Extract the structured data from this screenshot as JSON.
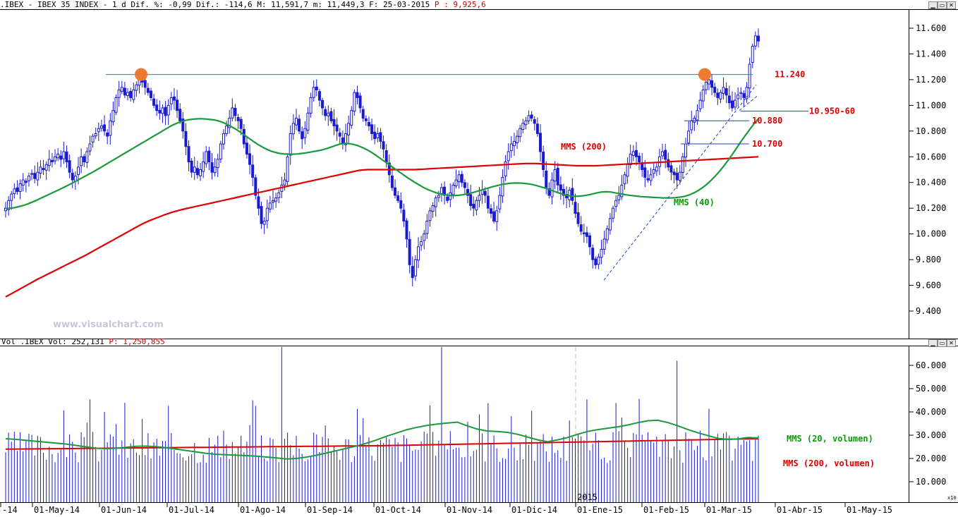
{
  "price_header": {
    "prefix": ".IBEX - IBEX 35 INDEX -  1 d Dif. %: -0,99 Dif.: -114,6 M: 11,591,7 m: 11,449,3 F: 25-03-2015",
    "p_label": "P : 9,925,6"
  },
  "volume_header": {
    "prefix": "Vol_.IBEX Vol: 252,131",
    "p_label": "P: 1,250,855"
  },
  "watermark": "www.visualchart.com",
  "window_buttons": [
    "▁",
    "▭",
    "✕"
  ],
  "scale_note": "x10",
  "colors": {
    "candle": "#1a1ad0",
    "mms40": "#1a9a3c",
    "mms200": "#e00000",
    "resistance": "#2a8a8a",
    "level_line": "#2040c0",
    "marker": "#f07830",
    "label_red": "#e00000",
    "label_green": "#0a9a0a"
  },
  "chart_data": [
    {
      "type": "candlestick",
      "title": "IBEX 35 INDEX",
      "ylim": [
        9250,
        11700
      ],
      "yticks": [
        "9.400",
        "9.600",
        "9.800",
        "10.000",
        "10.200",
        "10.400",
        "10.600",
        "10.800",
        "11.000",
        "11.200",
        "11.400",
        "11.600"
      ],
      "xticks": [
        "-14",
        "01-May-14",
        "01-Jun-14",
        "01-Jul-14",
        "01-Ago-14",
        "01-Sep-14",
        "01-Oct-14",
        "01-Nov-14",
        "01-Dic-14",
        "01-Ene-15",
        "01-Feb-15",
        "01-Mar-15",
        "01-Abr-15",
        "01-May-15"
      ],
      "close": [
        10200,
        10260,
        10310,
        10350,
        10330,
        10390,
        10420,
        10400,
        10450,
        10470,
        10430,
        10480,
        10520,
        10500,
        10540,
        10580,
        10560,
        10600,
        10620,
        10580,
        10640,
        10560,
        10480,
        10420,
        10450,
        10520,
        10600,
        10560,
        10640,
        10700,
        10760,
        10780,
        10820,
        10840,
        10800,
        10760,
        10880,
        10960,
        11060,
        11120,
        11140,
        11080,
        11100,
        11060,
        11120,
        11160,
        11200,
        11180,
        11140,
        11100,
        11060,
        11000,
        10960,
        10940,
        10980,
        10920,
        11000,
        11060,
        11040,
        10960,
        10880,
        10800,
        10680,
        10560,
        10480,
        10520,
        10460,
        10500,
        10560,
        10640,
        10560,
        10480,
        10520,
        10580,
        10700,
        10780,
        10840,
        10900,
        10980,
        10920,
        10880,
        10820,
        10700,
        10620,
        10540,
        10440,
        10300,
        10200,
        10080,
        10100,
        10200,
        10240,
        10260,
        10280,
        10320,
        10380,
        10420,
        10600,
        10780,
        10860,
        10900,
        10800,
        10740,
        10820,
        10940,
        11060,
        11140,
        11120,
        11040,
        10980,
        10920,
        10940,
        10880,
        10840,
        10800,
        10760,
        10700,
        10780,
        10860,
        10960,
        11100,
        11060,
        10980,
        10900,
        10880,
        10840,
        10780,
        10740,
        10780,
        10720,
        10660,
        10560,
        10460,
        10360,
        10300,
        10260,
        10200,
        10100,
        9960,
        9760,
        9660,
        9800,
        9900,
        9940,
        10000,
        10100,
        10180,
        10220,
        10280,
        10300,
        10360,
        10300,
        10260,
        10320,
        10380,
        10420,
        10460,
        10400,
        10360,
        10300,
        10220,
        10200,
        10260,
        10300,
        10340,
        10300,
        10200,
        10160,
        10100,
        10180,
        10300,
        10440,
        10560,
        10640,
        10700,
        10720,
        10760,
        10820,
        10860,
        10880,
        10920,
        10900,
        10860,
        10780,
        10640,
        10500,
        10360,
        10300,
        10420,
        10500,
        10380,
        10340,
        10300,
        10280,
        10340,
        10260,
        10160,
        10080,
        10020,
        10000,
        9980,
        9900,
        9800,
        9760,
        9820,
        9880,
        9960,
        10040,
        10120,
        10200,
        10260,
        10300,
        10380,
        10460,
        10540,
        10620,
        10640,
        10600,
        10560,
        10500,
        10440,
        10420,
        10460,
        10500,
        10520,
        10600,
        10640,
        10580,
        10520,
        10480,
        10460,
        10420,
        10480,
        10600,
        10700,
        10800,
        10880,
        10900,
        10960,
        11040,
        11120,
        11180,
        11200,
        11140,
        11100,
        11060,
        11100,
        11140,
        11080,
        11020,
        10980,
        11040,
        11080,
        11100,
        11060,
        11140,
        11320,
        11460,
        11540,
        11500
      ],
      "mms40": [
        10198,
        10200,
        10204,
        10212,
        10220,
        10232,
        10246,
        10260,
        10276,
        10292,
        10308,
        10324,
        10340,
        10356,
        10372,
        10390,
        10408,
        10426,
        10444,
        10462,
        10480,
        10500,
        10520,
        10540,
        10560,
        10580,
        10600,
        10620,
        10640,
        10660,
        10680,
        10700,
        10720,
        10740,
        10760,
        10780,
        10800,
        10820,
        10840,
        10856,
        10870,
        10880,
        10888,
        10892,
        10895,
        10896,
        10894,
        10890,
        10886,
        10878,
        10866,
        10850,
        10832,
        10812,
        10790,
        10766,
        10742,
        10718,
        10696,
        10676,
        10658,
        10644,
        10634,
        10626,
        10622,
        10620,
        10620,
        10622,
        10626,
        10630,
        10636,
        10642,
        10648,
        10656,
        10666,
        10678,
        10690,
        10700,
        10704,
        10702,
        10696,
        10686,
        10672,
        10656,
        10636,
        10614,
        10590,
        10566,
        10542,
        10518,
        10494,
        10470,
        10446,
        10424,
        10402,
        10382,
        10362,
        10346,
        10332,
        10320,
        10310,
        10304,
        10300,
        10298,
        10300,
        10304,
        10310,
        10318,
        10328,
        10338,
        10348,
        10358,
        10368,
        10376,
        10384,
        10390,
        10394,
        10396,
        10396,
        10394,
        10390,
        10384,
        10376,
        10366,
        10356,
        10344,
        10332,
        10320,
        10310,
        10300,
        10294,
        10292,
        10294,
        10298,
        10304,
        10312,
        10320,
        10326,
        10328,
        10326,
        10320,
        10314,
        10308,
        10302,
        10298,
        10294,
        10290,
        10288,
        10286,
        10284,
        10282,
        10280,
        10280,
        10280,
        10282,
        10286,
        10292,
        10302,
        10316,
        10334,
        10356,
        10382,
        10412,
        10446,
        10484,
        10526,
        10570,
        10618,
        10668,
        10718,
        10766,
        10812,
        10856,
        10895
      ],
      "mms200": [
        9510,
        9530,
        9550,
        9570,
        9590,
        9610,
        9630,
        9650,
        9668,
        9686,
        9704,
        9722,
        9740,
        9758,
        9776,
        9794,
        9812,
        9830,
        9850,
        9870,
        9890,
        9910,
        9930,
        9950,
        9970,
        9990,
        10010,
        10030,
        10050,
        10070,
        10088,
        10104,
        10118,
        10132,
        10146,
        10158,
        10170,
        10180,
        10190,
        10198,
        10206,
        10214,
        10222,
        10230,
        10238,
        10246,
        10254,
        10262,
        10270,
        10278,
        10286,
        10294,
        10302,
        10310,
        10318,
        10326,
        10334,
        10342,
        10350,
        10358,
        10366,
        10374,
        10382,
        10390,
        10398,
        10406,
        10414,
        10422,
        10430,
        10438,
        10446,
        10454,
        10462,
        10470,
        10478,
        10486,
        10494,
        10498,
        10500,
        10500,
        10500,
        10500,
        10500,
        10500,
        10500,
        10500,
        10500,
        10500,
        10500,
        10502,
        10504,
        10506,
        10508,
        10510,
        10512,
        10514,
        10516,
        10518,
        10520,
        10522,
        10524,
        10526,
        10528,
        10530,
        10532,
        10534,
        10536,
        10538,
        10540,
        10542,
        10544,
        10546,
        10548,
        10548,
        10548,
        10546,
        10544,
        10542,
        10540,
        10538,
        10536,
        10534,
        10532,
        10530,
        10530,
        10530,
        10530,
        10530,
        10532,
        10534,
        10536,
        10538,
        10540,
        10542,
        10544,
        10546,
        10548,
        10550,
        10552,
        10554,
        10556,
        10558,
        10560,
        10562,
        10564,
        10566,
        10568,
        10570,
        10572,
        10574,
        10576,
        10578,
        10580,
        10582,
        10584,
        10586,
        10588,
        10590,
        10592,
        10594,
        10596,
        10598,
        10600
      ],
      "annotations": [
        {
          "label": "11.240",
          "value": 11240,
          "kind": "resistance"
        },
        {
          "label": "10.950-60",
          "value": 10955,
          "kind": "level"
        },
        {
          "label": "10.880",
          "value": 10880,
          "kind": "level"
        },
        {
          "label": "10.700",
          "value": 10700,
          "kind": "level"
        },
        {
          "label": "MMS (200)",
          "kind": "mms200"
        },
        {
          "label": "MMS (40)",
          "kind": "mms40"
        }
      ]
    },
    {
      "type": "bar",
      "title": "Vol_.IBEX",
      "ylim": [
        0,
        68000
      ],
      "yticks": [
        "10.000",
        "20.000",
        "30.000",
        "40.000",
        "50.000",
        "60.000"
      ],
      "series_labels": [
        "MMS (20, volumen)",
        "MMS (200, volumen)"
      ],
      "year_label": "2015",
      "mms20_vol": [
        28500,
        28200,
        27800,
        27400,
        27000,
        26600,
        26200,
        25600,
        25000,
        24400,
        24200,
        24400,
        24800,
        25200,
        25300,
        25100,
        24600,
        24000,
        23400,
        22800,
        22200,
        21800,
        21600,
        21400,
        21200,
        21000,
        20600,
        20200,
        19800,
        20000,
        20600,
        21400,
        22400,
        23400,
        24400,
        25400,
        26600,
        28000,
        29600,
        31000,
        32400,
        33400,
        34200,
        34800,
        35200,
        35600,
        34000,
        32600,
        31800,
        31600,
        31200,
        30400,
        29200,
        28000,
        27200,
        28000,
        29000,
        30400,
        31600,
        32400,
        33000,
        33600,
        34400,
        35400,
        36200,
        36400,
        35400,
        34000,
        32400,
        31000,
        29800,
        28600,
        28200,
        28400,
        29000,
        28800
      ],
      "mms200_vol": [
        24000,
        24050,
        24100,
        24150,
        24200,
        24250,
        24300,
        24350,
        24400,
        24450,
        24500,
        24550,
        24600,
        24650,
        24700,
        24750,
        24800,
        24850,
        24900,
        24950,
        25000,
        25050,
        25100,
        25150,
        25200,
        25250,
        25300,
        25350,
        25400,
        25450,
        25500,
        25600,
        25700,
        25800,
        25900,
        26000,
        26100,
        26200,
        26300,
        26400,
        26500,
        26600,
        26700,
        26800,
        26900,
        27000,
        27100,
        27200,
        27300,
        27400,
        27500,
        27600,
        27700,
        27800,
        27900,
        28000,
        28100,
        28200,
        28300,
        28400,
        28500
      ]
    }
  ]
}
